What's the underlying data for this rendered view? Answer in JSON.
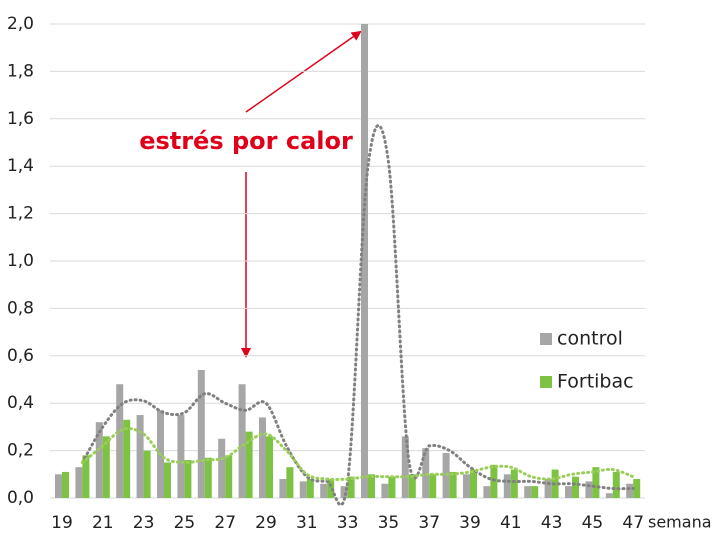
{
  "chart_data": {
    "type": "bar",
    "annotation": "estrés por calor",
    "x_label": "semana",
    "categories": [
      "19",
      null,
      "21",
      null,
      "23",
      null,
      "25",
      null,
      "27",
      null,
      "29",
      null,
      "31",
      null,
      "33",
      null,
      "35",
      null,
      "37",
      null,
      "39",
      null,
      "41",
      null,
      "43",
      null,
      "45",
      null,
      "47"
    ],
    "series": [
      {
        "name": "control",
        "color": "#a6a6a6",
        "values": [
          0.1,
          0.13,
          0.32,
          0.48,
          0.35,
          0.37,
          0.35,
          0.54,
          0.25,
          0.48,
          0.34,
          0.08,
          0.07,
          0.06,
          0.05,
          2.0,
          0.06,
          0.26,
          0.21,
          0.19,
          0.1,
          0.05,
          0.1,
          0.05,
          0.08,
          0.05,
          0.07,
          0.02,
          0.06
        ]
      },
      {
        "name": "Fortibac",
        "color": "#7dc242",
        "values": [
          0.11,
          0.18,
          0.26,
          0.33,
          0.2,
          0.15,
          0.16,
          0.17,
          0.18,
          0.28,
          0.26,
          0.13,
          0.08,
          0.08,
          0.09,
          0.1,
          0.09,
          0.1,
          0.1,
          0.11,
          0.12,
          0.14,
          0.12,
          0.05,
          0.12,
          0.09,
          0.13,
          0.11,
          0.08
        ]
      }
    ],
    "trendlines": [
      {
        "color": "#808080",
        "values": [
          null,
          0.15,
          0.3,
          0.4,
          0.41,
          0.36,
          0.36,
          0.44,
          0.4,
          0.37,
          0.4,
          0.22,
          0.09,
          0.07,
          0.07,
          1.4,
          1.42,
          0.16,
          0.22,
          0.2,
          0.13,
          0.08,
          0.07,
          0.07,
          0.06,
          0.06,
          0.05,
          0.04,
          0.04
        ]
      },
      {
        "color": "#9acd5a",
        "values": [
          null,
          0.15,
          0.22,
          0.29,
          0.27,
          0.17,
          0.15,
          0.16,
          0.17,
          0.23,
          0.27,
          0.2,
          0.1,
          0.08,
          0.08,
          0.09,
          0.09,
          0.09,
          0.1,
          0.1,
          0.11,
          0.13,
          0.13,
          0.09,
          0.08,
          0.1,
          0.11,
          0.12,
          0.09
        ]
      }
    ],
    "ylim": [
      0,
      2.0
    ],
    "yticks": [
      {
        "value": 0,
        "label": "0,0"
      },
      {
        "value": 0.2,
        "label": "0,2"
      },
      {
        "value": 0.4,
        "label": "0,4"
      },
      {
        "value": 0.6,
        "label": "0,6"
      },
      {
        "value": 0.8,
        "label": "0,8"
      },
      {
        "value": 1.0,
        "label": "1,0"
      },
      {
        "value": 1.2,
        "label": "1,2"
      },
      {
        "value": 1.4,
        "label": "1,4"
      },
      {
        "value": 1.6,
        "label": "1,6"
      },
      {
        "value": 1.8,
        "label": "1,8"
      },
      {
        "value": 2.0,
        "label": "2,0"
      }
    ],
    "grid": true
  }
}
